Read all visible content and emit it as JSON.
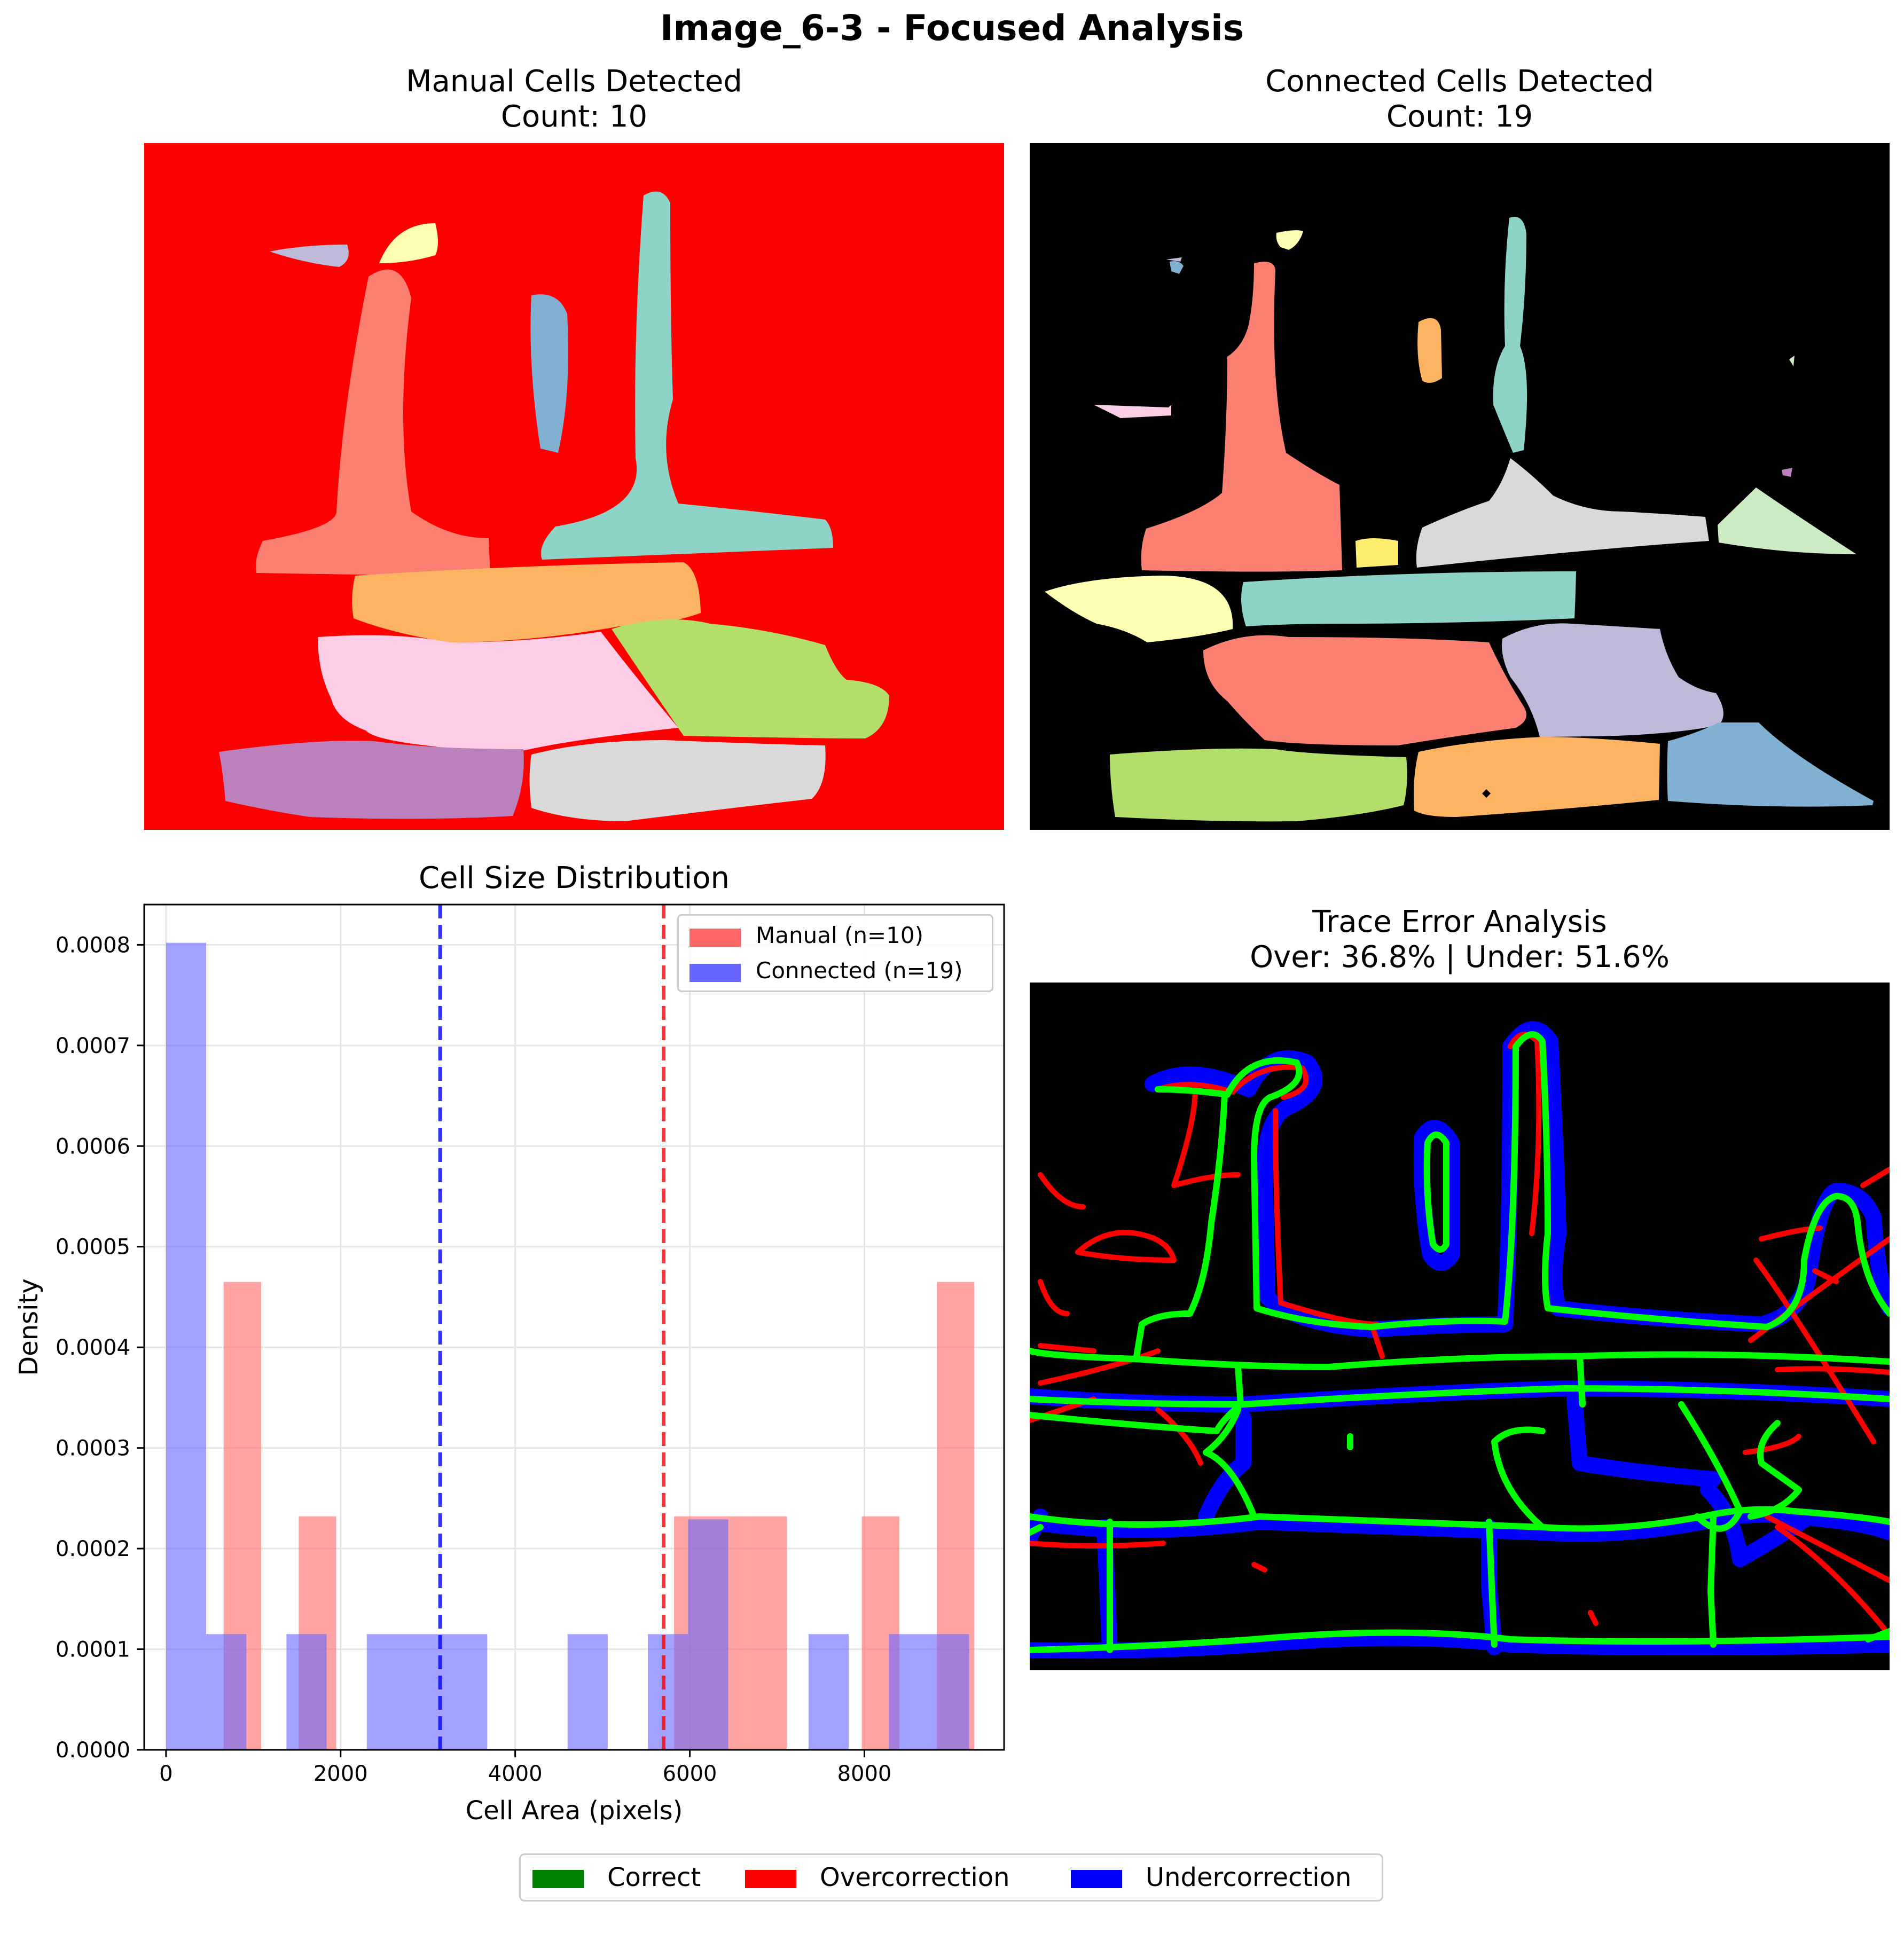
{
  "figure": {
    "title": "Image_6-3 - Focused Analysis"
  },
  "panels": {
    "manual": {
      "title_line1": "Manual Cells Detected",
      "title_line2": "Count: 10"
    },
    "connected": {
      "title_line1": "Connected Cells Detected",
      "title_line2": "Count: 19"
    },
    "trace": {
      "title_line1": "Trace Error Analysis",
      "title_line2": "Over: 36.8% | Under: 51.6%"
    }
  },
  "colors": {
    "manual_bg": "#ff0000",
    "connected_bg": "#000000",
    "trace_bg": "#000000",
    "correct": "#00ff00",
    "overcorrection": "#ff0000",
    "undercorrection": "#0000ff",
    "manual_hist": "#ff6666",
    "connected_hist": "#6666ff",
    "legend_correct": "#008000"
  },
  "chart_data": {
    "type": "bar",
    "title": "Cell Size Distribution",
    "xlabel": "Cell Area (pixels)",
    "ylabel": "Density",
    "xlim": [
      -250,
      9600
    ],
    "ylim": [
      0,
      0.00084
    ],
    "xticks": [
      0,
      2000,
      4000,
      6000,
      8000
    ],
    "xtick_labels": [
      "0",
      "2000",
      "4000",
      "6000",
      "8000"
    ],
    "yticks": [
      0,
      0.0001,
      0.0002,
      0.0003,
      0.0004,
      0.0005,
      0.0006,
      0.0007,
      0.0008
    ],
    "ytick_labels": [
      "0.0000",
      "0.0001",
      "0.0002",
      "0.0003",
      "0.0004",
      "0.0005",
      "0.0006",
      "0.0007",
      "0.0008"
    ],
    "grid": true,
    "legend_position": "upper right",
    "series": [
      {
        "name": "Manual (n=10)",
        "color": "#ff6666",
        "opacity": 0.6,
        "bins": [
          {
            "x0": 660,
            "x1": 1090,
            "density": 0.000465
          },
          {
            "x0": 1520,
            "x1": 1950,
            "density": 0.000232
          },
          {
            "x0": 5820,
            "x1": 6250,
            "density": 0.000232
          },
          {
            "x0": 6250,
            "x1": 6680,
            "density": 0.000232
          },
          {
            "x0": 6680,
            "x1": 7110,
            "density": 0.000232
          },
          {
            "x0": 7970,
            "x1": 8400,
            "density": 0.000232
          },
          {
            "x0": 8830,
            "x1": 9260,
            "density": 0.000465
          }
        ],
        "mean": 5700
      },
      {
        "name": "Connected (n=19)",
        "color": "#6666ff",
        "opacity": 0.6,
        "bins": [
          {
            "x0": 0,
            "x1": 460,
            "density": 0.000802
          },
          {
            "x0": 460,
            "x1": 920,
            "density": 0.000115
          },
          {
            "x0": 1380,
            "x1": 1840,
            "density": 0.000115
          },
          {
            "x0": 2300,
            "x1": 2760,
            "density": 0.000115
          },
          {
            "x0": 2760,
            "x1": 3220,
            "density": 0.000115
          },
          {
            "x0": 3220,
            "x1": 3680,
            "density": 0.000115
          },
          {
            "x0": 4600,
            "x1": 5060,
            "density": 0.000115
          },
          {
            "x0": 5520,
            "x1": 5980,
            "density": 0.000115
          },
          {
            "x0": 5980,
            "x1": 6440,
            "density": 0.000229
          },
          {
            "x0": 7360,
            "x1": 7820,
            "density": 0.000115
          },
          {
            "x0": 8280,
            "x1": 8740,
            "density": 0.000115
          },
          {
            "x0": 8740,
            "x1": 9200,
            "density": 0.000115
          }
        ],
        "mean": 3140
      }
    ]
  },
  "legend": {
    "correct": "Correct",
    "overcorrection": "Overcorrection",
    "undercorrection": "Undercorrection"
  }
}
